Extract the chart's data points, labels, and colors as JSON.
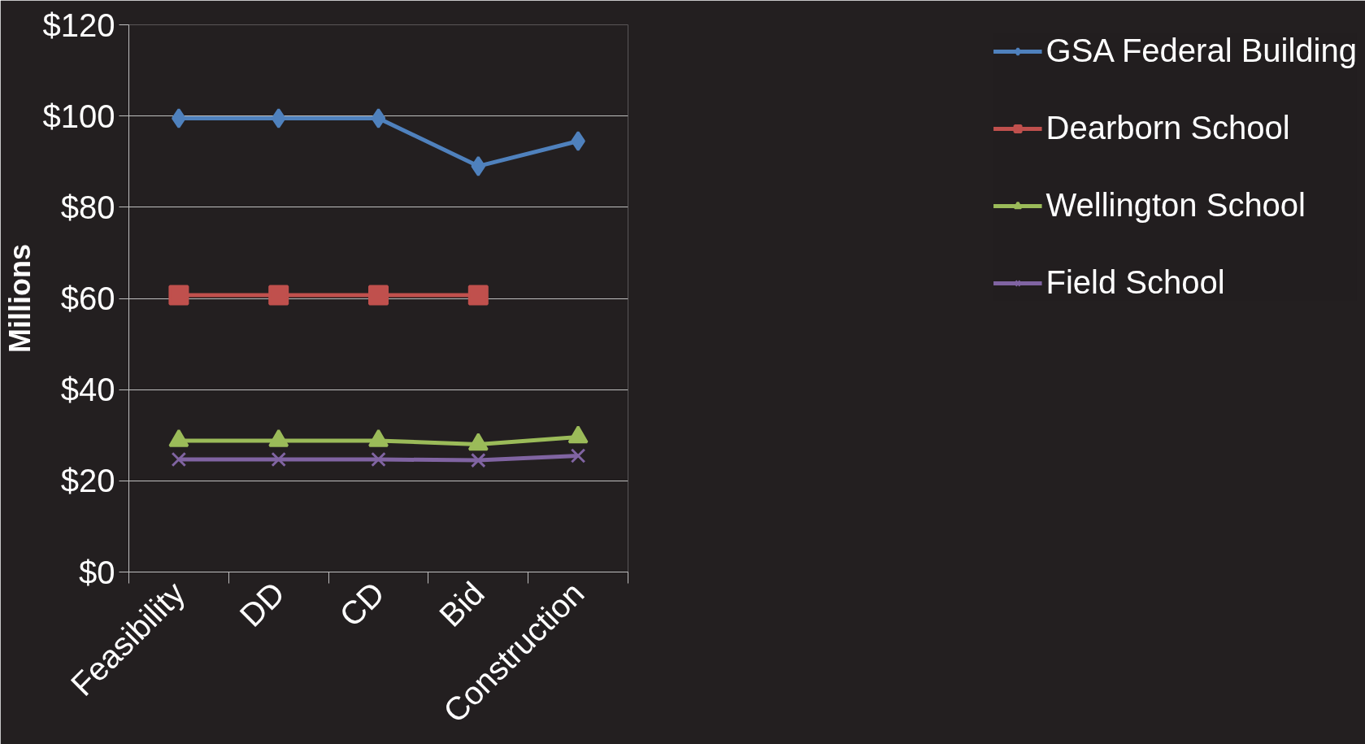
{
  "chart_data": {
    "type": "line",
    "categories": [
      "Feasibility",
      "DD",
      "CD",
      "Bid",
      "Construction"
    ],
    "ylabel": "Millions",
    "ylim": [
      0,
      120
    ],
    "yticks": [
      {
        "value": 0,
        "label": "$0"
      },
      {
        "value": 20,
        "label": "$20"
      },
      {
        "value": 40,
        "label": "$40"
      },
      {
        "value": 60,
        "label": "$60"
      },
      {
        "value": 80,
        "label": "$80"
      },
      {
        "value": 100,
        "label": "$100"
      },
      {
        "value": 120,
        "label": "$120"
      }
    ],
    "grid": "y",
    "legend": "right",
    "series": [
      {
        "name": "GSA Federal Building",
        "color": "#4f81bd",
        "marker": "diamond",
        "values": [
          99.5,
          99.5,
          99.5,
          89,
          94.5
        ]
      },
      {
        "name": "Dearborn School",
        "color": "#c0504d",
        "marker": "square",
        "values": [
          60.7,
          60.7,
          60.7,
          60.7,
          null
        ]
      },
      {
        "name": "Wellington School",
        "color": "#9bbb59",
        "marker": "triangle",
        "values": [
          28.8,
          28.8,
          28.8,
          28,
          29.6
        ]
      },
      {
        "name": "Field School",
        "color": "#8064a2",
        "marker": "cross",
        "values": [
          24.7,
          24.7,
          24.7,
          24.5,
          25.5
        ]
      }
    ]
  }
}
